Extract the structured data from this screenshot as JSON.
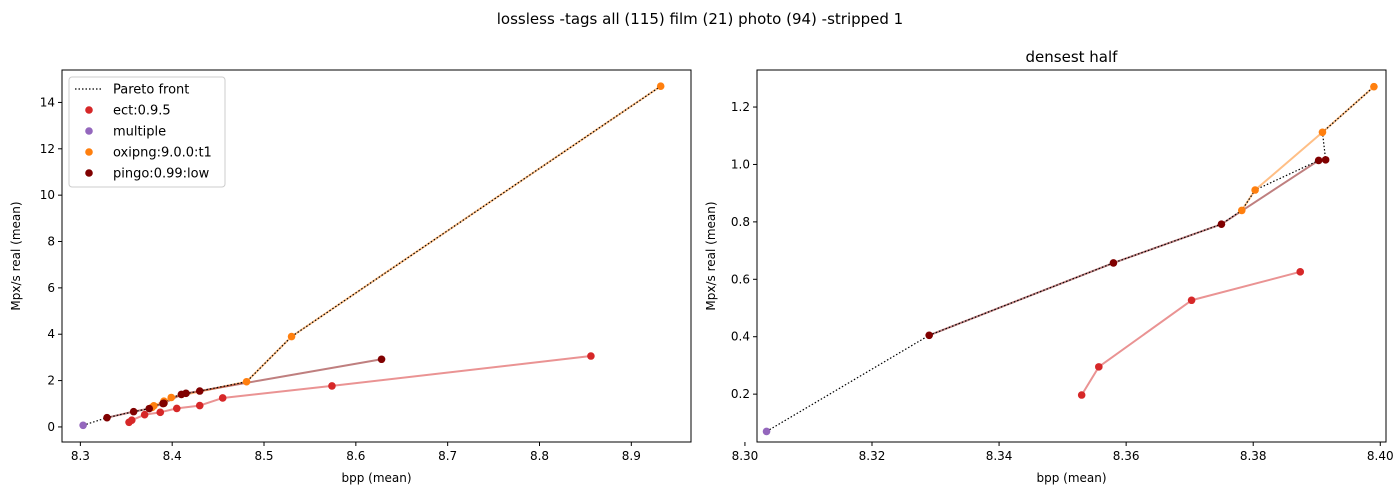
{
  "figure": {
    "suptitle": "lossless -tags all (115) film (21) photo (94) -stripped 1"
  },
  "colors": {
    "ect:0.9.5": "#d62728",
    "multiple": "#9467bd",
    "oxipng:9.0.0:t1": "#ff7f0e",
    "pingo:0.99:low": "#800000",
    "pareto": "#000000"
  },
  "chart_data": [
    {
      "type": "scatter",
      "title": "",
      "xlabel": "bpp (mean)",
      "ylabel": "Mpx/s real (mean)",
      "xlim": [
        8.28,
        8.965
      ],
      "ylim": [
        -0.65,
        15.4
      ],
      "xticks": [
        "8.3",
        "8.4",
        "8.5",
        "8.6",
        "8.7",
        "8.8",
        "8.9"
      ],
      "yticks": [
        "0",
        "2",
        "4",
        "6",
        "8",
        "10",
        "12",
        "14"
      ],
      "grid": false,
      "legend": {
        "placement": "top-left",
        "entries": [
          "Pareto front",
          "ect:0.9.5",
          "multiple",
          "oxipng:9.0.0:t1",
          "pingo:0.99:low"
        ]
      },
      "pareto_front": [
        [
          8.303,
          0.07
        ],
        [
          8.329,
          0.4
        ],
        [
          8.358,
          0.66
        ],
        [
          8.375,
          0.79
        ],
        [
          8.378,
          0.84
        ],
        [
          8.38,
          0.91
        ],
        [
          8.39,
          1.01
        ],
        [
          8.391,
          1.02
        ],
        [
          8.399,
          1.27
        ],
        [
          8.41,
          1.4
        ],
        [
          8.43,
          1.55
        ],
        [
          8.481,
          1.95
        ],
        [
          8.53,
          3.9
        ],
        [
          8.932,
          14.7
        ]
      ],
      "series": [
        {
          "name": "ect:0.9.5",
          "points": [
            [
              8.353,
              0.2
            ],
            [
              8.356,
              0.29
            ],
            [
              8.37,
              0.53
            ],
            [
              8.387,
              0.63
            ],
            [
              8.405,
              0.8
            ],
            [
              8.43,
              0.92
            ],
            [
              8.455,
              1.25
            ],
            [
              8.574,
              1.77
            ],
            [
              8.856,
              3.06
            ]
          ]
        },
        {
          "name": "multiple",
          "points": [
            [
              8.303,
              0.07
            ]
          ]
        },
        {
          "name": "oxipng:9.0.0:t1",
          "points": [
            [
              8.378,
              0.84
            ],
            [
              8.38,
              0.91
            ],
            [
              8.391,
              1.11
            ],
            [
              8.399,
              1.27
            ],
            [
              8.481,
              1.95
            ],
            [
              8.53,
              3.9
            ],
            [
              8.932,
              14.7
            ]
          ]
        },
        {
          "name": "pingo:0.99:low",
          "points": [
            [
              8.329,
              0.4
            ],
            [
              8.358,
              0.66
            ],
            [
              8.375,
              0.79
            ],
            [
              8.39,
              1.01
            ],
            [
              8.391,
              1.02
            ],
            [
              8.41,
              1.4
            ],
            [
              8.415,
              1.45
            ],
            [
              8.43,
              1.55
            ],
            [
              8.628,
              2.92
            ]
          ]
        }
      ]
    },
    {
      "type": "scatter",
      "title": "densest half",
      "xlabel": "bpp (mean)",
      "ylabel": "Mpx/s real (mean)",
      "xlim": [
        8.3019,
        8.4009
      ],
      "ylim": [
        0.0333,
        1.329
      ],
      "xticks": [
        "8.30",
        "8.32",
        "8.34",
        "8.36",
        "8.38",
        "8.40"
      ],
      "yticks": [
        "0.2",
        "0.4",
        "0.6",
        "0.8",
        "1.0",
        "1.2"
      ],
      "grid": false,
      "pareto_front": [
        [
          8.3034,
          0.07
        ],
        [
          8.329,
          0.405
        ],
        [
          8.358,
          0.657
        ],
        [
          8.375,
          0.792
        ],
        [
          8.3782,
          0.84
        ],
        [
          8.3803,
          0.911
        ],
        [
          8.3903,
          1.014
        ],
        [
          8.3914,
          1.016
        ],
        [
          8.3909,
          1.112
        ],
        [
          8.399,
          1.271
        ]
      ],
      "series": [
        {
          "name": "ect:0.9.5",
          "points": [
            [
              8.353,
              0.197
            ],
            [
              8.3557,
              0.295
            ],
            [
              8.3703,
              0.527
            ],
            [
              8.3874,
              0.626
            ]
          ]
        },
        {
          "name": "multiple",
          "points": [
            [
              8.3034,
              0.07
            ]
          ]
        },
        {
          "name": "oxipng:9.0.0:t1",
          "points": [
            [
              8.3782,
              0.84
            ],
            [
              8.3803,
              0.911
            ],
            [
              8.3909,
              1.112
            ],
            [
              8.399,
              1.271
            ]
          ]
        },
        {
          "name": "pingo:0.99:low",
          "points": [
            [
              8.329,
              0.405
            ],
            [
              8.358,
              0.657
            ],
            [
              8.375,
              0.792
            ],
            [
              8.3903,
              1.014
            ],
            [
              8.3914,
              1.016
            ]
          ]
        }
      ]
    }
  ]
}
